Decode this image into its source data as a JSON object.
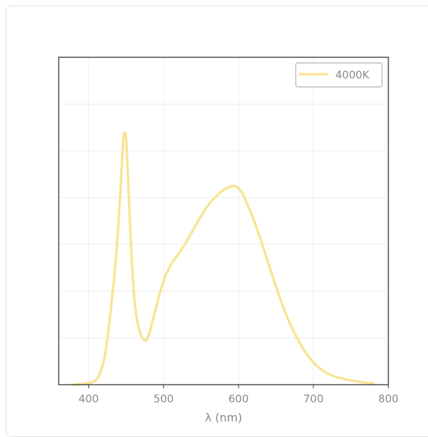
{
  "chart_data": {
    "type": "line",
    "title": "",
    "xlabel": "λ (nm)",
    "ylabel": "",
    "xlim": [
      360,
      800
    ],
    "ylim": [
      0,
      1.0
    ],
    "x_ticks": [
      400,
      500,
      600,
      700,
      800
    ],
    "y_gridlines": 7,
    "grid": true,
    "legend": "top-right",
    "series": [
      {
        "name": "4000K",
        "color": "#f7e594",
        "x": [
          380,
          395,
          405,
          410,
          415,
          420,
          425,
          430,
          435,
          440,
          443,
          446,
          448,
          450,
          452,
          455,
          458,
          462,
          466,
          470,
          475,
          478,
          482,
          487,
          492,
          497,
          502,
          507,
          512,
          520,
          530,
          540,
          550,
          560,
          570,
          580,
          590,
          595,
          600,
          605,
          610,
          620,
          630,
          640,
          650,
          660,
          670,
          680,
          690,
          700,
          710,
          720,
          730,
          740,
          750,
          760,
          770,
          780
        ],
        "y": [
          0.0,
          0.003,
          0.008,
          0.015,
          0.035,
          0.07,
          0.14,
          0.24,
          0.35,
          0.5,
          0.62,
          0.74,
          0.77,
          0.75,
          0.66,
          0.5,
          0.36,
          0.24,
          0.18,
          0.15,
          0.135,
          0.14,
          0.165,
          0.21,
          0.255,
          0.295,
          0.33,
          0.355,
          0.375,
          0.4,
          0.435,
          0.475,
          0.515,
          0.55,
          0.575,
          0.595,
          0.605,
          0.607,
          0.6,
          0.585,
          0.56,
          0.505,
          0.44,
          0.37,
          0.3,
          0.235,
          0.18,
          0.135,
          0.097,
          0.068,
          0.047,
          0.033,
          0.024,
          0.018,
          0.013,
          0.009,
          0.006,
          0.004
        ]
      }
    ]
  }
}
